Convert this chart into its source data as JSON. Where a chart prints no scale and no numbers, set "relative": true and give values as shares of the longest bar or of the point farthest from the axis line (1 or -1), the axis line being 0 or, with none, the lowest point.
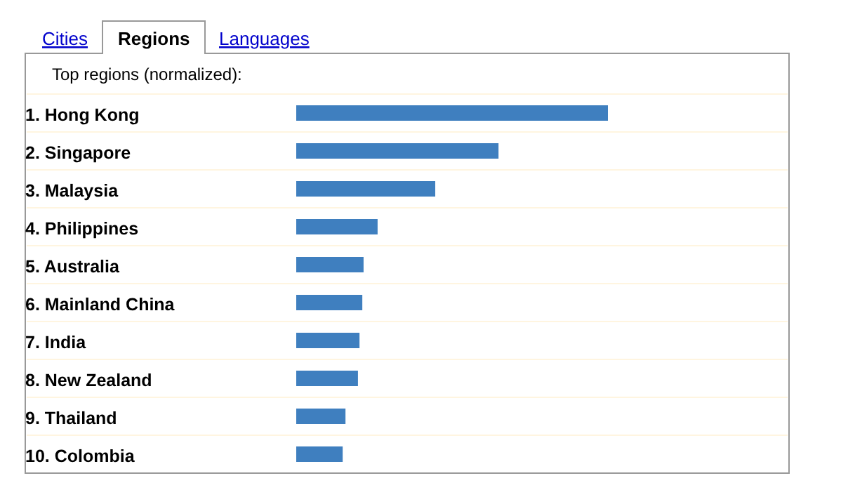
{
  "chart_data": {
    "type": "bar",
    "orientation": "horizontal",
    "relative": true,
    "title": "Top regions (normalized):",
    "annotations": [
      "Cities",
      "Regions",
      "Languages"
    ],
    "categories": [
      "1. Hong Kong",
      "2. Singapore",
      "3. Malaysia",
      "4. Philippines",
      "5. Australia",
      "6. Mainland China",
      "7. India",
      "8. New Zealand",
      "9. Thailand",
      "10. Colombia"
    ],
    "values": [
      1,
      0.649,
      0.446,
      0.261,
      0.216,
      0.212,
      0.203,
      0.198,
      0.158,
      0.149
    ],
    "color": "#3f7fbf"
  }
}
